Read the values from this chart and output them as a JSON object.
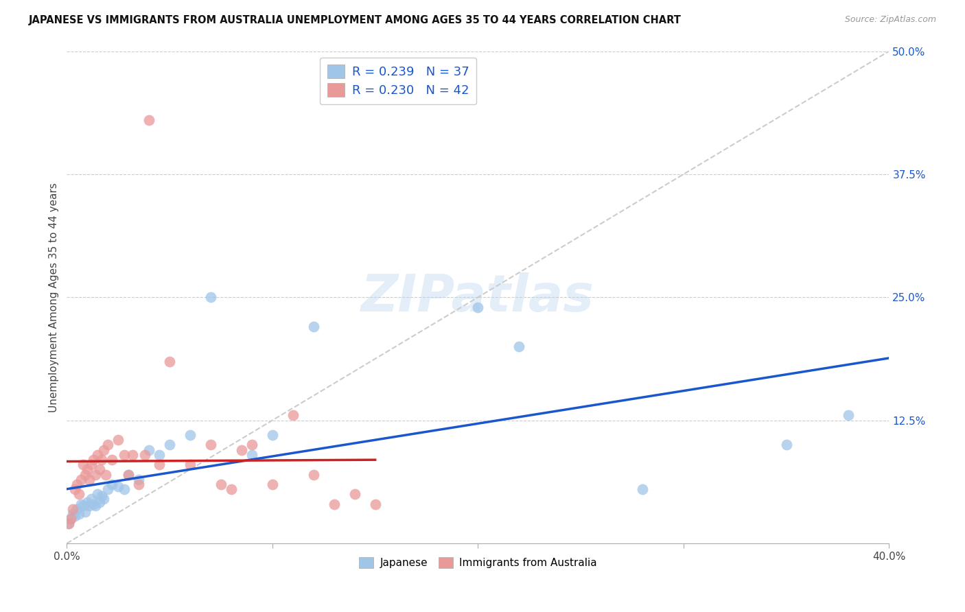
{
  "title": "JAPANESE VS IMMIGRANTS FROM AUSTRALIA UNEMPLOYMENT AMONG AGES 35 TO 44 YEARS CORRELATION CHART",
  "source": "Source: ZipAtlas.com",
  "ylabel": "Unemployment Among Ages 35 to 44 years",
  "xlim": [
    0.0,
    0.4
  ],
  "ylim": [
    0.0,
    0.5
  ],
  "yticks_right": [
    0.125,
    0.25,
    0.375,
    0.5
  ],
  "yticklabels_right": [
    "12.5%",
    "25.0%",
    "37.5%",
    "50.0%"
  ],
  "watermark": "ZIPatlas",
  "blue_color": "#9fc5e8",
  "pink_color": "#ea9999",
  "blue_line_color": "#1a56cc",
  "pink_line_color": "#cc2222",
  "gray_dash_color": "#cccccc",
  "legend_text1": "R = 0.239   N = 37",
  "legend_text2": "R = 0.230   N = 42",
  "legend_color": "#1a56cc",
  "japanese_x": [
    0.001,
    0.002,
    0.003,
    0.004,
    0.005,
    0.006,
    0.007,
    0.008,
    0.009,
    0.01,
    0.011,
    0.012,
    0.013,
    0.014,
    0.015,
    0.016,
    0.017,
    0.018,
    0.02,
    0.022,
    0.025,
    0.028,
    0.03,
    0.035,
    0.04,
    0.045,
    0.05,
    0.06,
    0.07,
    0.09,
    0.1,
    0.12,
    0.2,
    0.22,
    0.28,
    0.35,
    0.38
  ],
  "japanese_y": [
    0.02,
    0.025,
    0.03,
    0.028,
    0.035,
    0.03,
    0.04,
    0.038,
    0.032,
    0.042,
    0.038,
    0.045,
    0.04,
    0.038,
    0.05,
    0.042,
    0.048,
    0.045,
    0.055,
    0.06,
    0.058,
    0.055,
    0.07,
    0.065,
    0.095,
    0.09,
    0.1,
    0.11,
    0.25,
    0.09,
    0.11,
    0.22,
    0.24,
    0.2,
    0.055,
    0.1,
    0.13
  ],
  "australia_x": [
    0.001,
    0.002,
    0.003,
    0.004,
    0.005,
    0.006,
    0.007,
    0.008,
    0.009,
    0.01,
    0.011,
    0.012,
    0.013,
    0.014,
    0.015,
    0.016,
    0.017,
    0.018,
    0.019,
    0.02,
    0.022,
    0.025,
    0.028,
    0.03,
    0.032,
    0.035,
    0.038,
    0.04,
    0.045,
    0.05,
    0.06,
    0.07,
    0.075,
    0.08,
    0.085,
    0.09,
    0.1,
    0.11,
    0.12,
    0.13,
    0.14,
    0.15
  ],
  "australia_y": [
    0.02,
    0.025,
    0.035,
    0.055,
    0.06,
    0.05,
    0.065,
    0.08,
    0.07,
    0.075,
    0.065,
    0.08,
    0.085,
    0.07,
    0.09,
    0.075,
    0.085,
    0.095,
    0.07,
    0.1,
    0.085,
    0.105,
    0.09,
    0.07,
    0.09,
    0.06,
    0.09,
    0.43,
    0.08,
    0.185,
    0.08,
    0.1,
    0.06,
    0.055,
    0.095,
    0.1,
    0.06,
    0.13,
    0.07,
    0.04,
    0.05,
    0.04
  ]
}
